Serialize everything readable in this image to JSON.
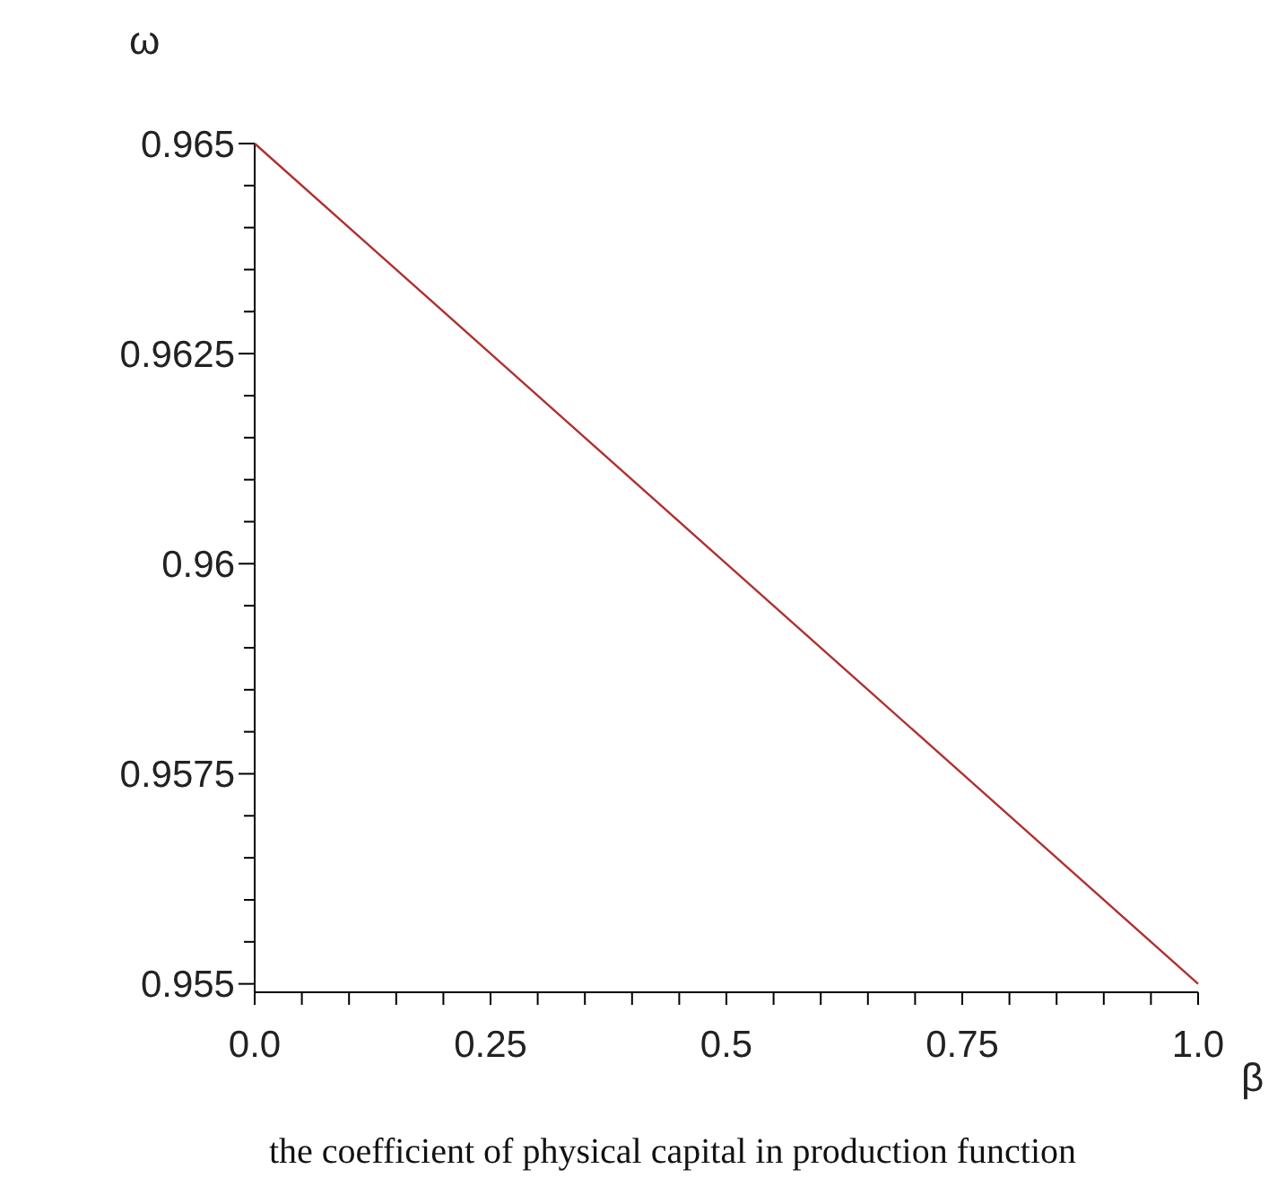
{
  "chart_data": {
    "type": "line",
    "ylabel": "ω",
    "xlabel": "β",
    "annotations": [
      "the coefficient of physical capital in production function"
    ],
    "x": [
      0,
      0.25,
      0.5,
      0.75,
      1
    ],
    "series": [
      {
        "color": "#b03030",
        "values": [
          0.965,
          0.9625,
          0.96,
          0.9575,
          0.955
        ]
      }
    ],
    "xlim": [
      0,
      1
    ],
    "ylim": [
      0.9549,
      0.965
    ],
    "xticks": [
      {
        "value": 0,
        "label": "0.0"
      },
      {
        "value": 0.05,
        "label": null
      },
      {
        "value": 0.1,
        "label": null
      },
      {
        "value": 0.15,
        "label": null
      },
      {
        "value": 0.2,
        "label": null
      },
      0.25,
      {
        "value": 0.3,
        "label": null
      },
      {
        "value": 0.35,
        "label": null
      },
      {
        "value": 0.4,
        "label": null
      },
      {
        "value": 0.45,
        "label": null
      },
      0.5,
      {
        "value": 0.55,
        "label": null
      },
      {
        "value": 0.6,
        "label": null
      },
      {
        "value": 0.65,
        "label": null
      },
      {
        "value": 0.7,
        "label": null
      },
      0.75,
      {
        "value": 0.8,
        "label": null
      },
      {
        "value": 0.85,
        "label": null
      },
      {
        "value": 0.9,
        "label": null
      },
      {
        "value": 0.95,
        "label": null
      },
      {
        "value": 1,
        "label": "1.0"
      }
    ],
    "yticks": [
      0.955,
      {
        "value": 0.9555,
        "label": null
      },
      {
        "value": 0.956,
        "label": null
      },
      {
        "value": 0.9565,
        "label": null
      },
      {
        "value": 0.957,
        "label": null
      },
      0.9575,
      {
        "value": 0.958,
        "label": null
      },
      {
        "value": 0.9585,
        "label": null
      },
      {
        "value": 0.959,
        "label": null
      },
      {
        "value": 0.9595,
        "label": null
      },
      0.96,
      {
        "value": 0.9605,
        "label": null
      },
      {
        "value": 0.961,
        "label": null
      },
      {
        "value": 0.9615,
        "label": null
      },
      {
        "value": 0.962,
        "label": null
      },
      0.9625,
      {
        "value": 0.963,
        "label": null
      },
      {
        "value": 0.9635,
        "label": null
      },
      {
        "value": 0.964,
        "label": null
      },
      {
        "value": 0.9645,
        "label": null
      },
      0.965
    ],
    "grid": false,
    "marker": "none",
    "line_style": "solid"
  }
}
